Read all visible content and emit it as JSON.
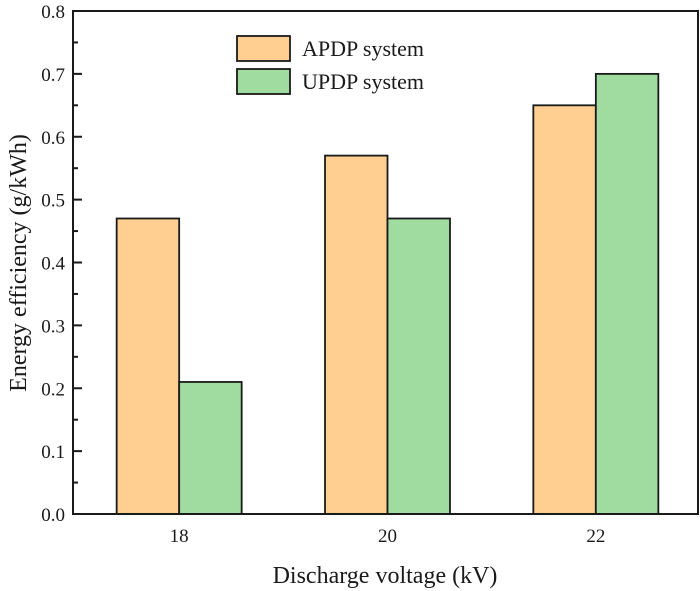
{
  "chart_data": {
    "type": "bar",
    "title": "",
    "xlabel": "Discharge voltage (kV)",
    "ylabel": "Energy efficiency (g/kWh)",
    "categories": [
      "18",
      "20",
      "22"
    ],
    "series": [
      {
        "name": "APDP system",
        "values": [
          0.47,
          0.57,
          0.65
        ],
        "color": "#FFCE91"
      },
      {
        "name": "UPDP system",
        "values": [
          0.21,
          0.47,
          0.7
        ],
        "color": "#A0DBA0"
      }
    ],
    "ylim": [
      0.0,
      0.8
    ],
    "yticks": [
      "0.0",
      "0.1",
      "0.2",
      "0.3",
      "0.4",
      "0.5",
      "0.6",
      "0.7",
      "0.8"
    ],
    "grid": false,
    "legend_position": "top-center"
  }
}
